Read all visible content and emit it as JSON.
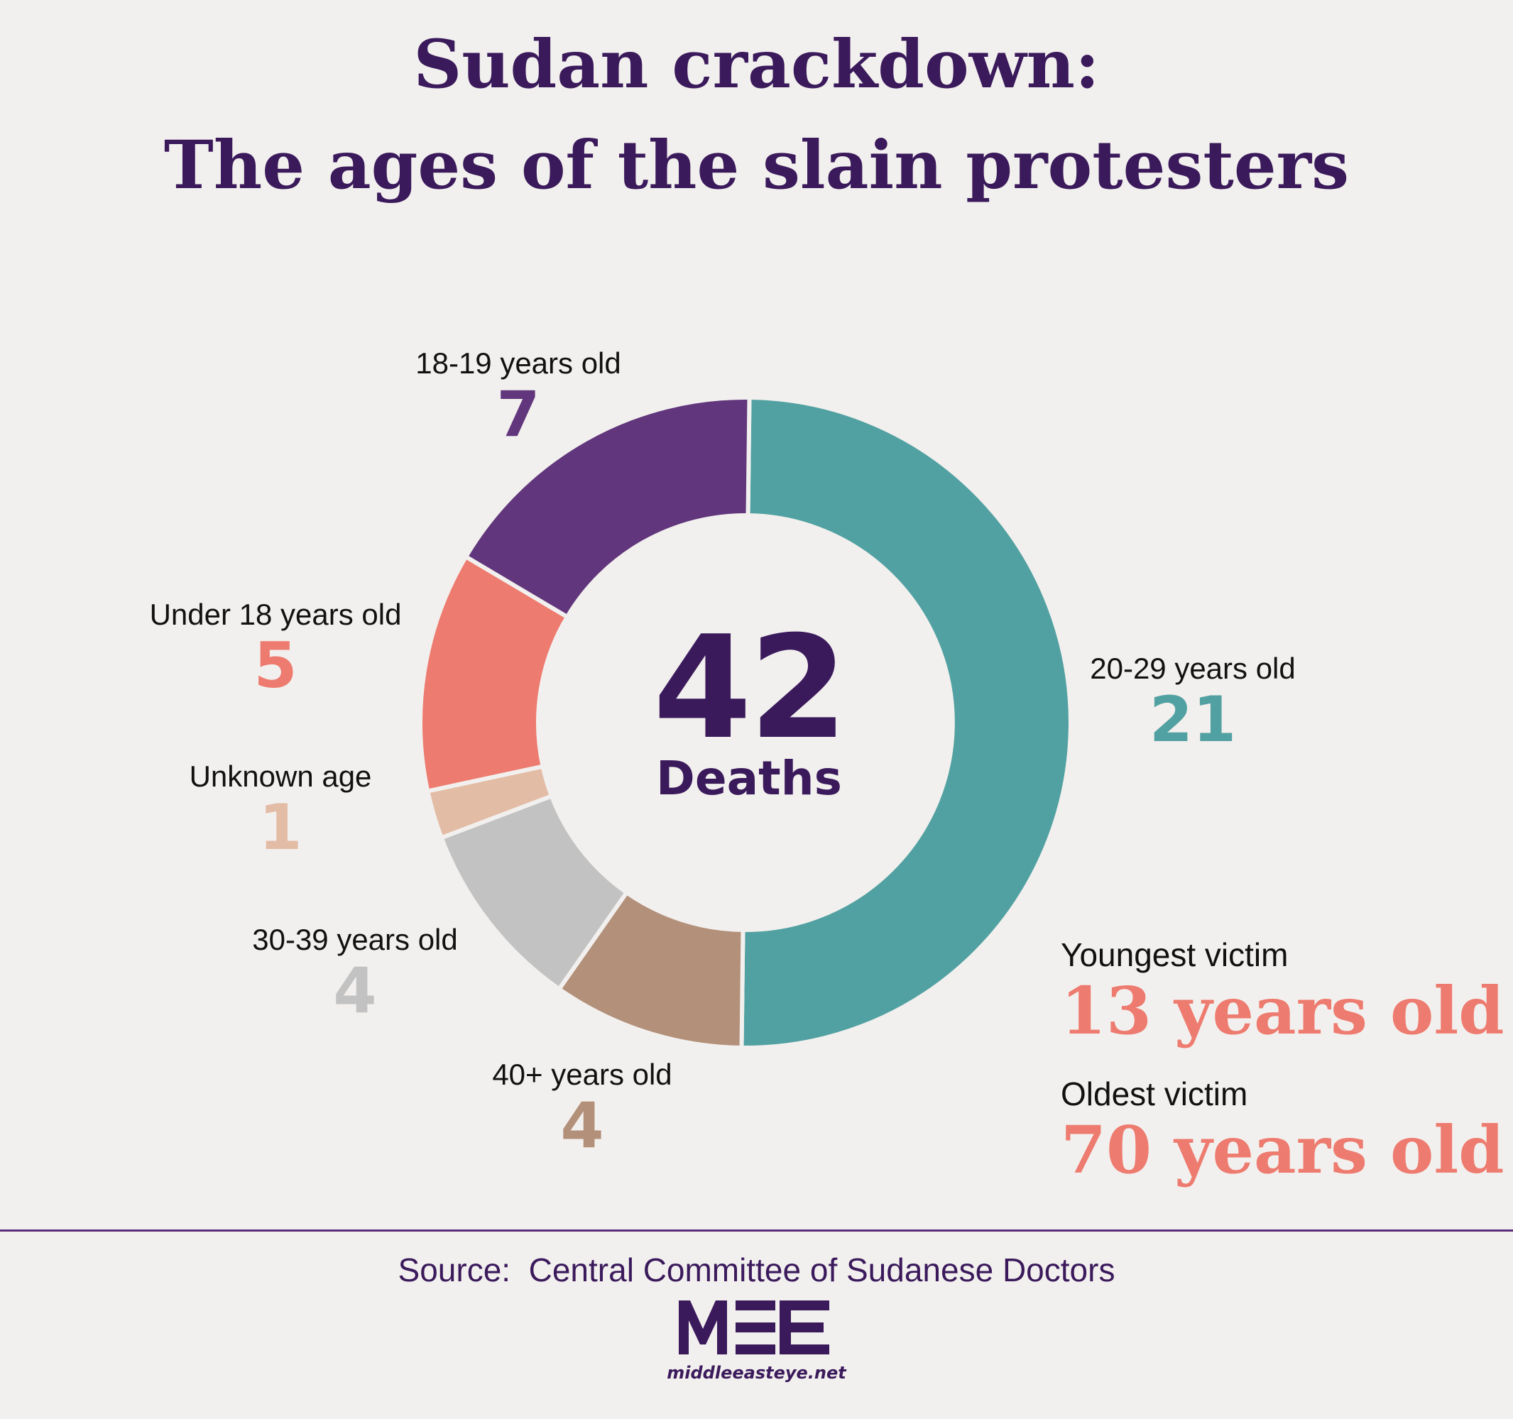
{
  "title_line1": "Sudan crackdown:",
  "title_line2": "The ages of the slain protesters",
  "colors": {
    "title": "#3b1a5c",
    "background": "#f2f0ee",
    "highlight": "#ee7b6f"
  },
  "chart_data": {
    "type": "pie",
    "donut": true,
    "total": 42,
    "center_value": "42",
    "center_caption": "Deaths",
    "slices": [
      {
        "label": "20-29 years old",
        "value": 21,
        "display": "21",
        "color": "#52a1a2"
      },
      {
        "label": "40+ years old",
        "value": 4,
        "display": "4",
        "color": "#b39079"
      },
      {
        "label": "30-39 years old",
        "value": 4,
        "display": "4",
        "color": "#c2c2c2"
      },
      {
        "label": "Unknown age",
        "value": 1,
        "display": "1",
        "color": "#e3bca5"
      },
      {
        "label": "Under 18 years old",
        "value": 5,
        "display": "5",
        "color": "#ee7b6f"
      },
      {
        "label": "18-19 years old",
        "value": 7,
        "display": "7",
        "color": "#61367c"
      }
    ]
  },
  "stats": {
    "youngest_label": "Youngest victim",
    "youngest_value": "13 years old",
    "oldest_label": "Oldest victim",
    "oldest_value": "70 years old"
  },
  "source": "Source:  Central Committee of Sudanese Doctors",
  "logo": {
    "text": "MEE",
    "url": "middleeasteye.net"
  }
}
